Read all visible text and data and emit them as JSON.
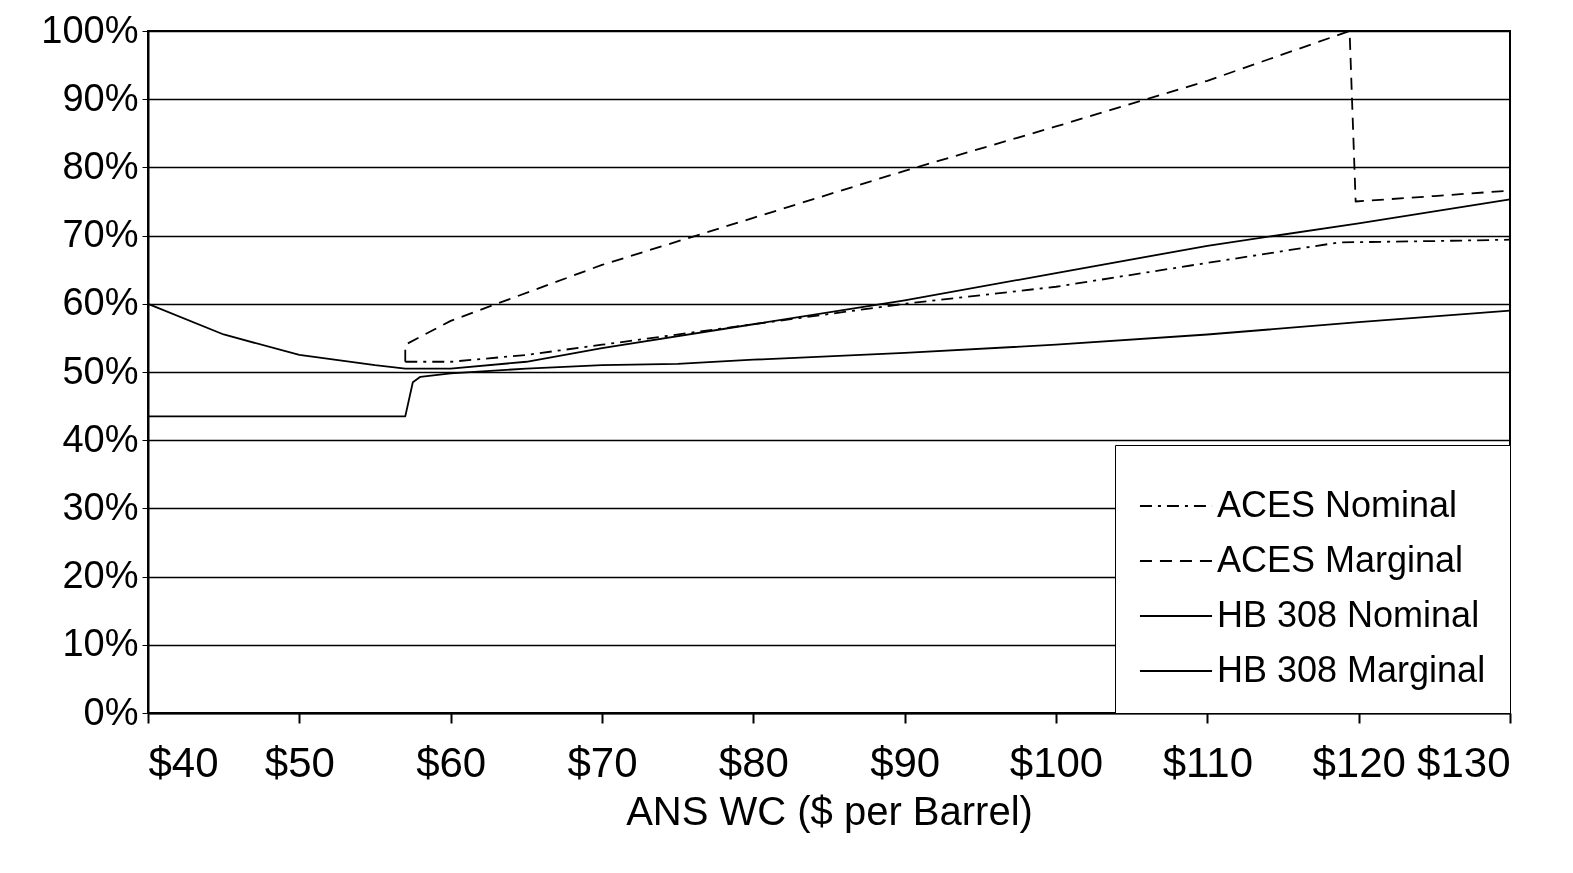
{
  "chart_data": {
    "type": "line",
    "xlabel": "ANS WC ($ per Barrel)",
    "xlim": [
      40,
      130
    ],
    "ylim": [
      0,
      100
    ],
    "xticks": [
      {
        "value": 40,
        "label": "$40"
      },
      {
        "value": 50,
        "label": "$50"
      },
      {
        "value": 60,
        "label": "$60"
      },
      {
        "value": 70,
        "label": "$70"
      },
      {
        "value": 80,
        "label": "$80"
      },
      {
        "value": 90,
        "label": "$90"
      },
      {
        "value": 100,
        "label": "$100"
      },
      {
        "value": 110,
        "label": "$110"
      },
      {
        "value": 120,
        "label": "$120"
      },
      {
        "value": 130,
        "label": "$130"
      }
    ],
    "yticks": [
      {
        "value": 0,
        "label": "0%"
      },
      {
        "value": 10,
        "label": "10%"
      },
      {
        "value": 20,
        "label": "20%"
      },
      {
        "value": 30,
        "label": "30%"
      },
      {
        "value": 40,
        "label": "40%"
      },
      {
        "value": 50,
        "label": "50%"
      },
      {
        "value": 60,
        "label": "60%"
      },
      {
        "value": 70,
        "label": "70%"
      },
      {
        "value": 80,
        "label": "80%"
      },
      {
        "value": 90,
        "label": "90%"
      },
      {
        "value": 100,
        "label": "100%"
      }
    ],
    "grid": "y",
    "legend": "bottom right",
    "marker": "none",
    "series": [
      {
        "name": "ACES Nominal",
        "color": "#000000",
        "line_style": "dashdot",
        "x": [
          57,
          60,
          65,
          70,
          80,
          90,
          100,
          110,
          118.7,
          125,
          130
        ],
        "values": [
          51.5,
          51.5,
          52.5,
          54,
          57,
          60,
          62.5,
          66,
          69,
          69.2,
          69.4
        ]
      },
      {
        "name": "ACES Marginal",
        "color": "#000000",
        "line_style": "dashed",
        "x": [
          57,
          57,
          60,
          70,
          80,
          90,
          100,
          110,
          119.4,
          119.8,
          125,
          130
        ],
        "values": [
          51.5,
          54,
          57.5,
          65.7,
          72.6,
          79.5,
          86,
          92.7,
          100,
          75,
          75.8,
          76.6
        ]
      },
      {
        "name": "HB 308 Nominal",
        "color": "#000000",
        "line_style": "solid",
        "x": [
          40,
          57,
          57.5,
          58,
          60,
          65,
          70,
          75,
          80,
          90,
          100,
          110,
          120,
          130
        ],
        "values": [
          43.5,
          43.5,
          48.5,
          49.3,
          49.8,
          50.5,
          51,
          51.2,
          51.8,
          52.8,
          54,
          55.5,
          57.3,
          59
        ]
      },
      {
        "name": "HB 308 Marginal",
        "color": "#000000",
        "line_style": "solid",
        "x": [
          40,
          45,
          50,
          55,
          57,
          60,
          65,
          70,
          80,
          90,
          100,
          110,
          120,
          130
        ],
        "values": [
          60,
          55.5,
          52.5,
          51,
          50.5,
          50.5,
          51.5,
          53.5,
          57,
          60.5,
          64.5,
          68.5,
          71.8,
          75.3
        ]
      }
    ]
  }
}
